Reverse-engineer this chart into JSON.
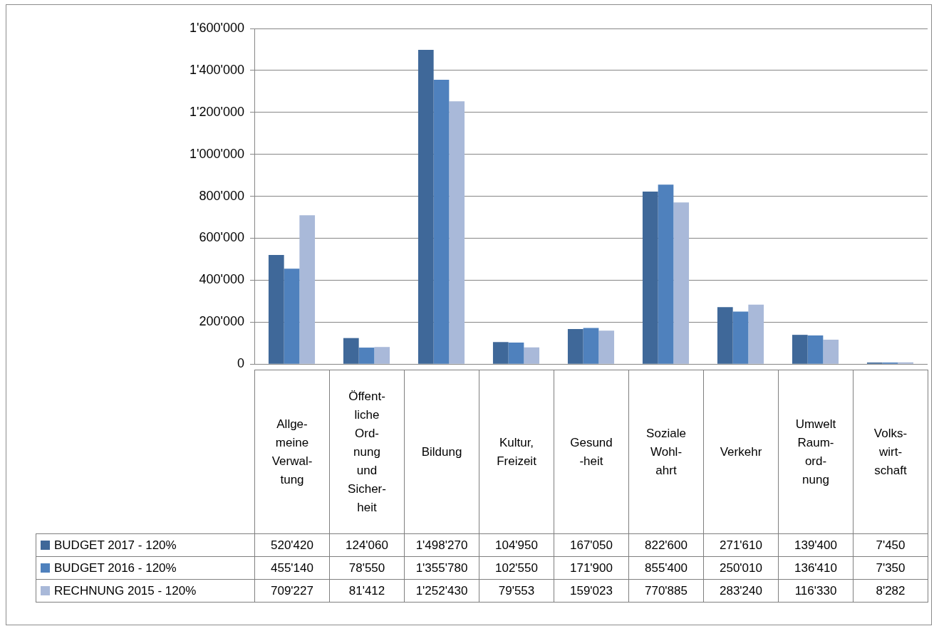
{
  "chart_data": {
    "type": "bar",
    "categories": [
      "Allge-\nmeine\nVerwal-\ntung",
      "Öffent-\nliche\nOrd-\nnung\nund\nSicher-\nheit",
      "Bildung",
      "Kultur,\nFreizeit",
      "Gesund\n-heit",
      "Soziale\nWohl-\nahrt",
      "Verkehr",
      "Umwelt\nRaum-\nord-\nnung",
      "Volks-\nwirt-\nschaft"
    ],
    "series": [
      {
        "name": "BUDGET 2017 - 120%",
        "color": "#3f6899",
        "values": [
          520420,
          124060,
          1498270,
          104950,
          167050,
          822600,
          271610,
          139400,
          7450
        ],
        "value_labels": [
          "520'420",
          "124'060",
          "1'498'270",
          "104'950",
          "167'050",
          "822'600",
          "271'610",
          "139'400",
          "7'450"
        ]
      },
      {
        "name": "BUDGET 2016 - 120%",
        "color": "#4f81bd",
        "values": [
          455140,
          78550,
          1355780,
          102550,
          171900,
          855400,
          250010,
          136410,
          7350
        ],
        "value_labels": [
          "455'140",
          "78'550",
          "1'355'780",
          "102'550",
          "171'900",
          "855'400",
          "250'010",
          "136'410",
          "7'350"
        ]
      },
      {
        "name": "RECHNUNG 2015 - 120%",
        "color": "#a9b9d9",
        "values": [
          709227,
          81412,
          1252430,
          79553,
          159023,
          770885,
          283240,
          116330,
          8282
        ],
        "value_labels": [
          "709'227",
          "81'412",
          "1'252'430",
          "79'553",
          "159'023",
          "770'885",
          "283'240",
          "116'330",
          "8'282"
        ]
      }
    ],
    "ylim": [
      0,
      1600000
    ],
    "yticks": [
      0,
      {
        "value": 200000,
        "label": "200'000"
      },
      {
        "value": 400000,
        "label": "400'000"
      },
      {
        "value": 600000,
        "label": "600'000"
      },
      {
        "value": 800000,
        "label": "800'000"
      },
      {
        "value": 1000000,
        "label": "1'000'000"
      },
      {
        "value": 1200000,
        "label": "1'200'000"
      },
      {
        "value": 1400000,
        "label": "1'400'000"
      },
      {
        "value": 1600000,
        "label": "1'600'000"
      }
    ],
    "grid": "y",
    "legend": "bottom"
  }
}
